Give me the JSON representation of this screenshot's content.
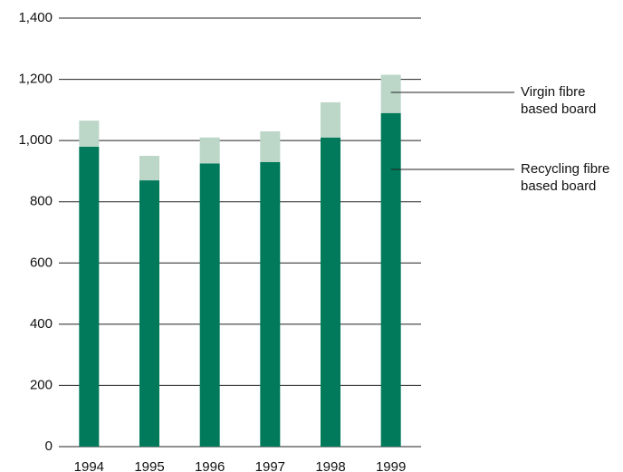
{
  "chart_data": {
    "type": "stacked_bar",
    "categories": [
      "1994",
      "1995",
      "1996",
      "1997",
      "1998",
      "1999"
    ],
    "series": [
      {
        "name": "Recycling fibre based board",
        "color": "#007a5a",
        "values": [
          980,
          870,
          925,
          930,
          1010,
          1090
        ]
      },
      {
        "name": "Virgin fibre based board",
        "color": "#bcd6c8",
        "values": [
          85,
          80,
          85,
          100,
          115,
          125
        ]
      }
    ],
    "ylim": [
      0,
      1400
    ],
    "yticks": [
      0,
      200,
      400,
      600,
      800,
      {
        "value": 1000,
        "label": "1,000"
      },
      {
        "value": 1200,
        "label": "1,200"
      },
      {
        "value": 1400,
        "label": "1,400"
      }
    ],
    "grid": true
  }
}
